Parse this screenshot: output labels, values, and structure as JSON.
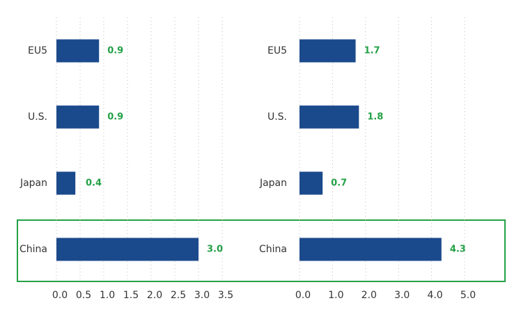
{
  "chart_data": [
    {
      "type": "barh",
      "categories": [
        "EU5",
        "U.S.",
        "Japan",
        "China"
      ],
      "values": [
        0.9,
        0.9,
        0.4,
        3
      ],
      "value_labels": [
        "0.9",
        "0.9",
        "0.4",
        "3.0"
      ],
      "color": "#1b4a8c",
      "label_color": "#23a046",
      "xlim": [
        0,
        3.5
      ],
      "xticks": [
        {
          "value": 0,
          "label": "0.0"
        },
        0.5,
        {
          "value": 1,
          "label": "1.0"
        },
        1.5,
        {
          "value": 2,
          "label": "2.0"
        },
        2.5,
        {
          "value": 3,
          "label": "3.0"
        },
        3.5
      ],
      "grid": true
    },
    {
      "type": "barh",
      "categories": [
        "EU5",
        "U.S.",
        "Japan",
        "China"
      ],
      "values": [
        1.7,
        1.8,
        0.7,
        4.3
      ],
      "color": "#1b4a8c",
      "label_color": "#23a046",
      "xlim": [
        0,
        5
      ],
      "xticks": [
        {
          "value": 0,
          "label": "0.0"
        },
        {
          "value": 1,
          "label": "1.0"
        },
        {
          "value": 2,
          "label": "2.0"
        },
        {
          "value": 3,
          "label": "3.0"
        },
        {
          "value": 4,
          "label": "4.0"
        },
        {
          "value": 5,
          "label": "5.0"
        }
      ],
      "grid": true
    }
  ]
}
